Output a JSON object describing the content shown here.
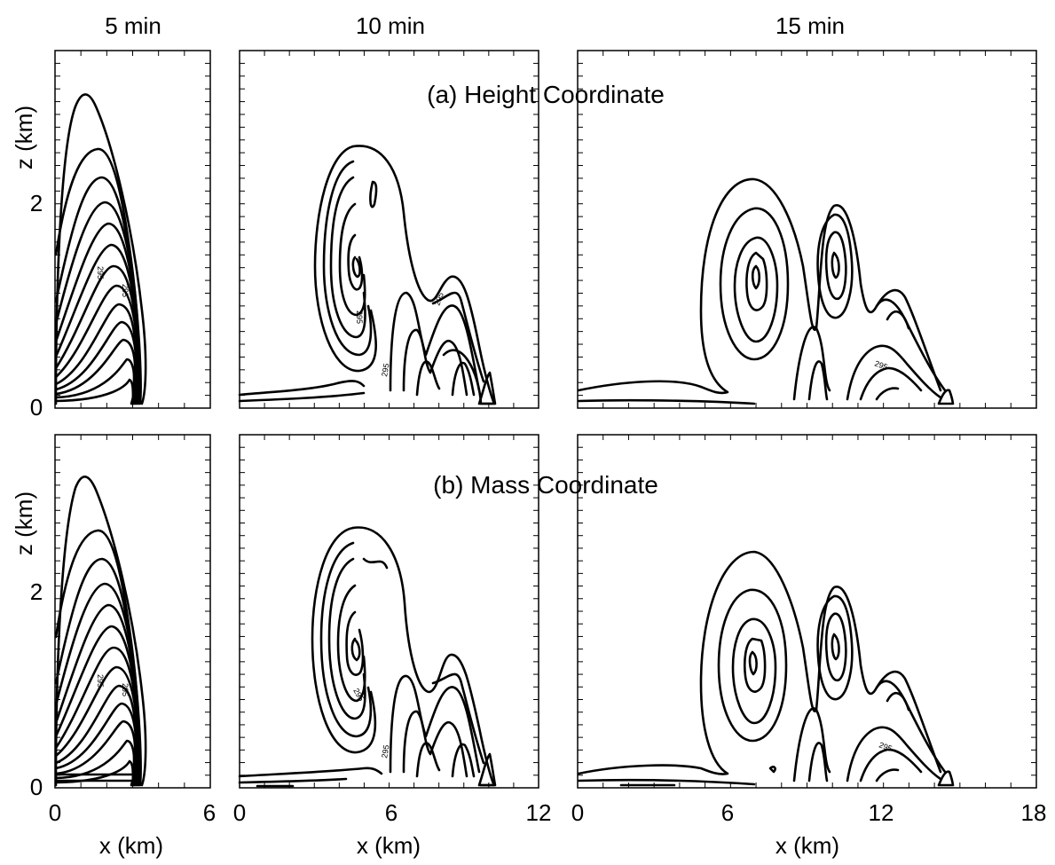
{
  "chart_data": {
    "type": "contour",
    "variable_contour_label": "295",
    "column_titles": [
      "5 min",
      "10 min",
      "15 min"
    ],
    "row_titles": [
      "(a) Height Coordinate",
      "(b) Mass Coordinate"
    ],
    "xlabel": "x (km)",
    "ylabel": "z (km)",
    "x_ranges": [
      [
        0,
        6
      ],
      [
        0,
        12
      ],
      [
        0,
        18
      ]
    ],
    "x_ticklabels": [
      [
        "0",
        "6"
      ],
      [
        "0",
        "6",
        "12"
      ],
      [
        "0",
        "6",
        "12",
        "18"
      ]
    ],
    "ylim": [
      0,
      3.5
    ],
    "y_ticklabels": [
      "0",
      "2"
    ],
    "panels": [
      {
        "row": "(a) Height Coordinate",
        "time": "5 min",
        "front_x_km": 3.6,
        "max_height_km": 3.1,
        "vortex_centers_km": []
      },
      {
        "row": "(a) Height Coordinate",
        "time": "10 min",
        "front_x_km": 9.8,
        "max_height_km": 2.6,
        "vortex_centers_km": [
          [
            4.5,
            1.3
          ],
          [
            7.7,
            1.0
          ]
        ]
      },
      {
        "row": "(a) Height Coordinate",
        "time": "15 min",
        "front_x_km": 14.8,
        "max_height_km": 2.25,
        "vortex_centers_km": [
          [
            7.0,
            1.3
          ],
          [
            10.2,
            1.4
          ],
          [
            12.4,
            0.8
          ]
        ]
      },
      {
        "row": "(b) Mass Coordinate",
        "time": "5 min",
        "front_x_km": 3.6,
        "max_height_km": 3.15,
        "vortex_centers_km": []
      },
      {
        "row": "(b) Mass Coordinate",
        "time": "10 min",
        "front_x_km": 9.8,
        "max_height_km": 2.6,
        "vortex_centers_km": [
          [
            4.5,
            1.3
          ],
          [
            8.0,
            0.9
          ]
        ]
      },
      {
        "row": "(b) Mass Coordinate",
        "time": "15 min",
        "front_x_km": 14.8,
        "max_height_km": 2.35,
        "vortex_centers_km": [
          [
            6.6,
            1.3
          ],
          [
            10.2,
            1.3
          ],
          [
            12.4,
            0.8
          ]
        ]
      }
    ]
  }
}
